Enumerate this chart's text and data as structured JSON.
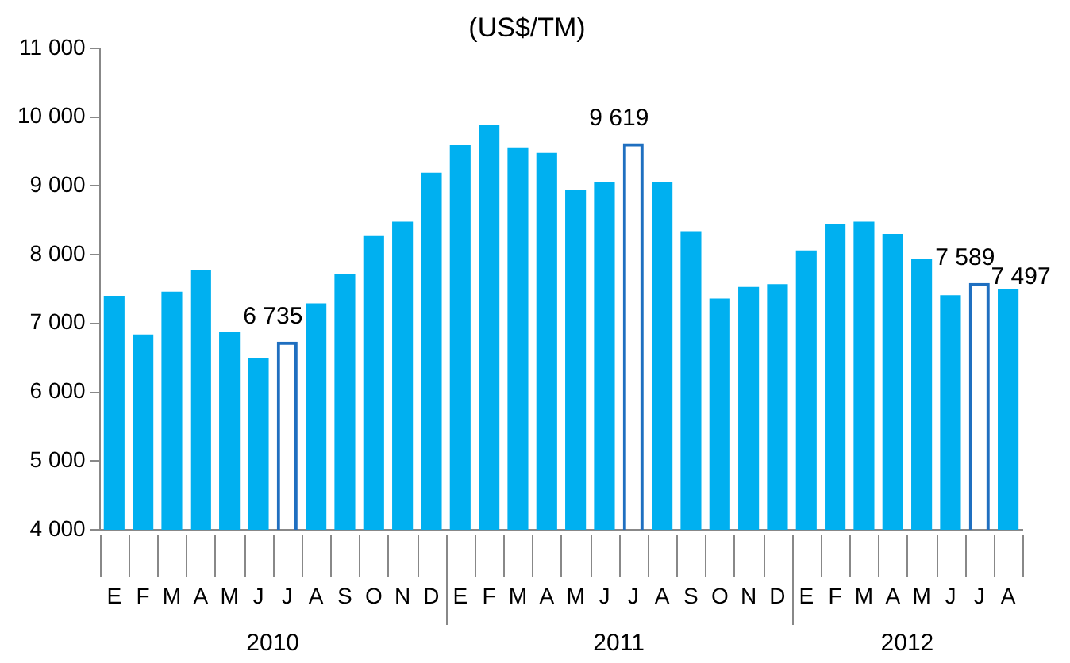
{
  "chart_data": {
    "type": "bar",
    "title": "(US$/TM)",
    "categories": [
      "E",
      "F",
      "M",
      "A",
      "M",
      "J",
      "J",
      "A",
      "S",
      "O",
      "N",
      "D",
      "E",
      "F",
      "M",
      "A",
      "M",
      "J",
      "J",
      "A",
      "S",
      "O",
      "N",
      "D",
      "E",
      "F",
      "M",
      "A",
      "M",
      "J",
      "J",
      "A"
    ],
    "values": [
      7400,
      6840,
      7460,
      7780,
      6880,
      6490,
      6735,
      7290,
      7720,
      8280,
      8480,
      9190,
      9590,
      9880,
      9560,
      9480,
      8940,
      9060,
      9619,
      9060,
      8340,
      7360,
      7530,
      7570,
      8060,
      8440,
      8480,
      8300,
      7930,
      7410,
      7589,
      7497
    ],
    "color": "#00b0f0",
    "colors": [
      "#00b0f0",
      "#00b0f0",
      "#00b0f0",
      "#00b0f0",
      "#00b0f0",
      "#00b0f0",
      "#1f6fc0",
      "#00b0f0",
      "#00b0f0",
      "#00b0f0",
      "#00b0f0",
      "#00b0f0",
      "#00b0f0",
      "#00b0f0",
      "#00b0f0",
      "#00b0f0",
      "#00b0f0",
      "#00b0f0",
      "#1f6fc0",
      "#00b0f0",
      "#00b0f0",
      "#00b0f0",
      "#00b0f0",
      "#00b0f0",
      "#00b0f0",
      "#00b0f0",
      "#00b0f0",
      "#00b0f0",
      "#00b0f0",
      "#00b0f0",
      "#1f6fc0",
      "#00b0f0"
    ],
    "value_labels": [
      null,
      null,
      null,
      null,
      null,
      null,
      "6 735",
      null,
      null,
      null,
      null,
      null,
      null,
      null,
      null,
      null,
      null,
      null,
      "9 619",
      null,
      null,
      null,
      null,
      null,
      null,
      null,
      null,
      null,
      null,
      null,
      "7 589",
      "7 497"
    ],
    "ylim": [
      4000,
      11000
    ],
    "yticks": [
      {
        "value": 4000,
        "label": "4 000"
      },
      {
        "value": 5000,
        "label": "5 000"
      },
      {
        "value": 6000,
        "label": "6 000"
      },
      {
        "value": 7000,
        "label": "7 000"
      },
      {
        "value": 8000,
        "label": "8 000"
      },
      {
        "value": 9000,
        "label": "9 000"
      },
      {
        "value": 10000,
        "label": "10 000"
      },
      {
        "value": 11000,
        "label": "11 000"
      }
    ],
    "annotations": [
      "2010",
      "2011",
      "2012"
    ],
    "grid": false,
    "legend": false
  }
}
